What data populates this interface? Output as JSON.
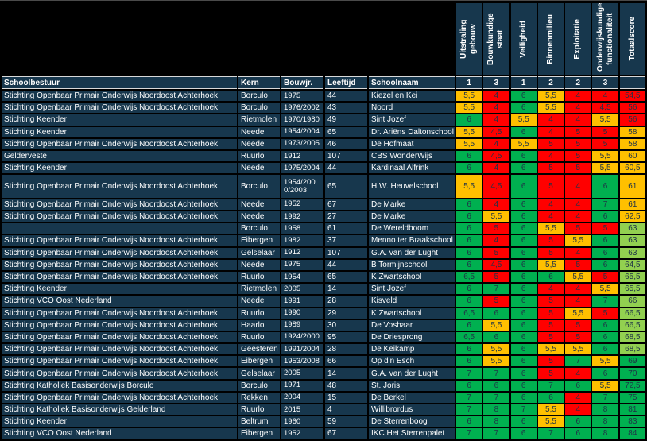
{
  "table": {
    "text_columns": [
      "Schoolbestuur",
      "Kern",
      "Bouwjr.",
      "Leeftijd",
      "Schoolnaam"
    ],
    "score_columns": [
      {
        "label": "Uitstraling gebouw",
        "weight": "1"
      },
      {
        "label": "Bouwkundige staat",
        "weight": "3"
      },
      {
        "label": "Veiligheid",
        "weight": "1"
      },
      {
        "label": "Binnenmilieu",
        "weight": "2"
      },
      {
        "label": "Exploitatie",
        "weight": "2"
      },
      {
        "label": "Onderwijskundige functionaliteit",
        "weight": "3"
      },
      {
        "label": "Totaalscore",
        "weight": ""
      }
    ],
    "rows": [
      {
        "bestuur": "Stichting Openbaar Primair Onderwijs Noordoost Achterhoek",
        "kern": "Borculo",
        "bouwjr": "1975",
        "leeftijd": "44",
        "school": "Kiezel en Kei",
        "scores": [
          [
            "5,5",
            "o"
          ],
          [
            "4",
            "r"
          ],
          [
            "6",
            "g"
          ],
          [
            "5,5",
            "o"
          ],
          [
            "4",
            "r"
          ],
          [
            "4",
            "r"
          ]
        ],
        "total": [
          "54,5",
          "r"
        ],
        "tall": false
      },
      {
        "bestuur": "Stichting Openbaar Primair Onderwijs Noordoost Achterhoek",
        "kern": "Borculo",
        "bouwjr": "1976/2002",
        "leeftijd": "43",
        "school": "Noord",
        "scores": [
          [
            "5,5",
            "o"
          ],
          [
            "4",
            "r"
          ],
          [
            "6",
            "g"
          ],
          [
            "5,5",
            "o"
          ],
          [
            "4",
            "r"
          ],
          [
            "4,5",
            "r"
          ]
        ],
        "total": [
          "56",
          "r"
        ],
        "tall": false
      },
      {
        "bestuur": "Stichting Keender",
        "kern": "Rietmolen",
        "bouwjr": "1970/1980",
        "leeftijd": "49",
        "school": "Sint Jozef",
        "scores": [
          [
            "6",
            "g"
          ],
          [
            "4",
            "r"
          ],
          [
            "5,5",
            "o"
          ],
          [
            "4",
            "r"
          ],
          [
            "4",
            "r"
          ],
          [
            "5,5",
            "o"
          ]
        ],
        "total": [
          "56",
          "r"
        ],
        "tall": false
      },
      {
        "bestuur": "Stichting Keender",
        "kern": "Neede",
        "bouwjr": "1954/2004",
        "leeftijd": "65",
        "school": "Dr. Ariëns Daltonschool",
        "scores": [
          [
            "5,5",
            "o"
          ],
          [
            "4,5",
            "r"
          ],
          [
            "6",
            "g"
          ],
          [
            "4",
            "r"
          ],
          [
            "5",
            "r"
          ],
          [
            "5",
            "r"
          ]
        ],
        "total": [
          "58",
          "o"
        ],
        "tall": false
      },
      {
        "bestuur": "Stichting Openbaar Primair Onderwijs Noordoost Achterhoek",
        "kern": "Neede",
        "bouwjr": "1973/2005",
        "leeftijd": "46",
        "school": "De Hofmaat",
        "scores": [
          [
            "5,5",
            "o"
          ],
          [
            "4",
            "r"
          ],
          [
            "5,5",
            "o"
          ],
          [
            "5",
            "r"
          ],
          [
            "5",
            "r"
          ],
          [
            "5",
            "r"
          ]
        ],
        "total": [
          "58",
          "o"
        ],
        "tall": false
      },
      {
        "bestuur": "Gelderveste",
        "kern": "Ruurlo",
        "bouwjr": "1912",
        "leeftijd": "107",
        "school": "CBS WonderWijs",
        "scores": [
          [
            "6",
            "g"
          ],
          [
            "4,5",
            "r"
          ],
          [
            "6",
            "g"
          ],
          [
            "4",
            "r"
          ],
          [
            "5",
            "r"
          ],
          [
            "5,5",
            "o"
          ]
        ],
        "total": [
          "60",
          "o"
        ],
        "tall": false
      },
      {
        "bestuur": "Stichting Keender",
        "kern": "Neede",
        "bouwjr": "1975/2004",
        "leeftijd": "44",
        "school": "Kardinaal Alfrink",
        "scores": [
          [
            "6",
            "g"
          ],
          [
            "4",
            "r"
          ],
          [
            "6",
            "g"
          ],
          [
            "5",
            "r"
          ],
          [
            "5",
            "r"
          ],
          [
            "5,5",
            "o"
          ]
        ],
        "total": [
          "60,5",
          "o"
        ],
        "tall": false
      },
      {
        "bestuur": "Stichting Openbaar Primair Onderwijs Noordoost Achterhoek",
        "kern": "Borculo",
        "bouwjr": "1954/2000/2003",
        "leeftijd": "65",
        "school": "H.W. Heuvelschool",
        "scores": [
          [
            "5,5",
            "o"
          ],
          [
            "4,5",
            "r"
          ],
          [
            "6",
            "g"
          ],
          [
            "5",
            "r"
          ],
          [
            "4",
            "r"
          ],
          [
            "6",
            "g"
          ]
        ],
        "total": [
          "61",
          "o"
        ],
        "tall": true
      },
      {
        "bestuur": "Stichting Openbaar Primair Onderwijs Noordoost Achterhoek",
        "kern": "Neede",
        "bouwjr": "1952",
        "leeftijd": "67",
        "school": "De Marke",
        "scores": [
          [
            "6",
            "g"
          ],
          [
            "4",
            "r"
          ],
          [
            "6",
            "g"
          ],
          [
            "4",
            "r"
          ],
          [
            "4",
            "r"
          ],
          [
            "7",
            "g"
          ]
        ],
        "total": [
          "61",
          "o"
        ],
        "tall": false
      },
      {
        "bestuur": "Stichting Openbaar Primair Onderwijs Noordoost Achterhoek",
        "kern": "Neede",
        "bouwjr": "1992",
        "leeftijd": "27",
        "school": "De Marke",
        "scores": [
          [
            "6",
            "g"
          ],
          [
            "5,5",
            "o"
          ],
          [
            "6",
            "g"
          ],
          [
            "4",
            "r"
          ],
          [
            "4",
            "r"
          ],
          [
            "6",
            "g"
          ]
        ],
        "total": [
          "62,5",
          "o"
        ],
        "tall": false
      },
      {
        "bestuur": "",
        "kern": "Borculo",
        "bouwjr": "1958",
        "leeftijd": "61",
        "school": "De Wereldboom",
        "scores": [
          [
            "6",
            "g"
          ],
          [
            "5",
            "r"
          ],
          [
            "6",
            "g"
          ],
          [
            "5,5",
            "o"
          ],
          [
            "5",
            "r"
          ],
          [
            "5",
            "r"
          ]
        ],
        "total": [
          "63",
          "lg"
        ],
        "tall": false
      },
      {
        "bestuur": "Stichting Openbaar Primair Onderwijs Noordoost Achterhoek",
        "kern": "Eibergen",
        "bouwjr": "1982",
        "leeftijd": "37",
        "school": "Menno ter Braakschool",
        "scores": [
          [
            "6",
            "g"
          ],
          [
            "4",
            "r"
          ],
          [
            "6",
            "g"
          ],
          [
            "5",
            "r"
          ],
          [
            "5,5",
            "o"
          ],
          [
            "6",
            "g"
          ]
        ],
        "total": [
          "63",
          "lg"
        ],
        "tall": false
      },
      {
        "bestuur": "Stichting Openbaar Primair Onderwijs Noordoost Achterhoek",
        "kern": "Gelselaar",
        "bouwjr": "1912",
        "leeftijd": "107",
        "school": "G.A. van der Lught",
        "scores": [
          [
            "6",
            "g"
          ],
          [
            "5",
            "r"
          ],
          [
            "6",
            "g"
          ],
          [
            "5",
            "r"
          ],
          [
            "4",
            "r"
          ],
          [
            "6",
            "g"
          ]
        ],
        "total": [
          "63",
          "lg"
        ],
        "tall": false
      },
      {
        "bestuur": "Stichting Openbaar Primair Onderwijs Noordoost Achterhoek",
        "kern": "Neede",
        "bouwjr": "1975",
        "leeftijd": "44",
        "school": "B Tormijnschool",
        "scores": [
          [
            "6",
            "g"
          ],
          [
            "4,5",
            "r"
          ],
          [
            "6",
            "g"
          ],
          [
            "5,5",
            "o"
          ],
          [
            "5",
            "r"
          ],
          [
            "6",
            "g"
          ]
        ],
        "total": [
          "64,5",
          "lg"
        ],
        "tall": false
      },
      {
        "bestuur": "Stichting Openbaar Primair Onderwijs Noordoost Achterhoek",
        "kern": "Ruurlo",
        "bouwjr": "1954",
        "leeftijd": "65",
        "school": "K Zwartschool",
        "scores": [
          [
            "6,5",
            "g"
          ],
          [
            "5",
            "r"
          ],
          [
            "6",
            "g"
          ],
          [
            "6",
            "g"
          ],
          [
            "5,5",
            "o"
          ],
          [
            "5",
            "r"
          ]
        ],
        "total": [
          "65,5",
          "lg"
        ],
        "tall": false
      },
      {
        "bestuur": "Stichting Keender",
        "kern": "Rietmolen",
        "bouwjr": "2005",
        "leeftijd": "14",
        "school": "Sint Jozef",
        "scores": [
          [
            "6",
            "g"
          ],
          [
            "7",
            "g"
          ],
          [
            "6",
            "g"
          ],
          [
            "4",
            "r"
          ],
          [
            "4",
            "r"
          ],
          [
            "5,5",
            "o"
          ]
        ],
        "total": [
          "65,5",
          "lg"
        ],
        "tall": false
      },
      {
        "bestuur": "Stichting VCO Oost Nederland",
        "kern": "Neede",
        "bouwjr": "1991",
        "leeftijd": "28",
        "school": "Kisveld",
        "scores": [
          [
            "6",
            "g"
          ],
          [
            "5",
            "r"
          ],
          [
            "6",
            "g"
          ],
          [
            "5",
            "r"
          ],
          [
            "4",
            "r"
          ],
          [
            "7",
            "g"
          ]
        ],
        "total": [
          "66",
          "lg"
        ],
        "tall": false
      },
      {
        "bestuur": "Stichting Openbaar Primair Onderwijs Noordoost Achterhoek",
        "kern": "Ruurlo",
        "bouwjr": "1990",
        "leeftijd": "29",
        "school": "K Zwartschool",
        "scores": [
          [
            "6,5",
            "g"
          ],
          [
            "6",
            "g"
          ],
          [
            "6",
            "g"
          ],
          [
            "5",
            "r"
          ],
          [
            "5,5",
            "o"
          ],
          [
            "5",
            "r"
          ]
        ],
        "total": [
          "66,5",
          "lg"
        ],
        "tall": false
      },
      {
        "bestuur": "Stichting Openbaar Primair Onderwijs Noordoost Achterhoek",
        "kern": "Haarlo",
        "bouwjr": "1989",
        "leeftijd": "30",
        "school": "De Voshaar",
        "scores": [
          [
            "6",
            "g"
          ],
          [
            "5,5",
            "o"
          ],
          [
            "6",
            "g"
          ],
          [
            "5",
            "r"
          ],
          [
            "5",
            "r"
          ],
          [
            "6",
            "g"
          ]
        ],
        "total": [
          "66,5",
          "lg"
        ],
        "tall": false
      },
      {
        "bestuur": "Stichting Openbaar Primair Onderwijs Noordoost Achterhoek",
        "kern": "Ruurlo",
        "bouwjr": "1924/2000",
        "leeftijd": "95",
        "school": "De Driesprong",
        "scores": [
          [
            "6,5",
            "g"
          ],
          [
            "6",
            "g"
          ],
          [
            "6",
            "g"
          ],
          [
            "5",
            "r"
          ],
          [
            "5",
            "r"
          ],
          [
            "6",
            "g"
          ]
        ],
        "total": [
          "68,5",
          "lg"
        ],
        "tall": false
      },
      {
        "bestuur": "Stichting Openbaar Primair Onderwijs Noordoost Achterhoek",
        "kern": "Geesteren",
        "bouwjr": "1991/2004",
        "leeftijd": "28",
        "school": "De Keikamp",
        "scores": [
          [
            "6",
            "g"
          ],
          [
            "5,5",
            "o"
          ],
          [
            "6",
            "g"
          ],
          [
            "5,5",
            "o"
          ],
          [
            "5,5",
            "o"
          ],
          [
            "6",
            "g"
          ]
        ],
        "total": [
          "68,5",
          "lg"
        ],
        "tall": false
      },
      {
        "bestuur": "Stichting Openbaar Primair Onderwijs Noordoost Achterhoek",
        "kern": "Eibergen",
        "bouwjr": "1953/2008",
        "leeftijd": "66",
        "school": "Op d'n Esch",
        "scores": [
          [
            "6",
            "g"
          ],
          [
            "5,5",
            "o"
          ],
          [
            "6",
            "g"
          ],
          [
            "5",
            "r"
          ],
          [
            "7",
            "g"
          ],
          [
            "5,5",
            "o"
          ]
        ],
        "total": [
          "69",
          "g"
        ],
        "tall": false
      },
      {
        "bestuur": "Stichting Openbaar Primair Onderwijs Noordoost Achterhoek",
        "kern": "Gelselaar",
        "bouwjr": "2005",
        "leeftijd": "14",
        "school": "G.A. van der Lught",
        "scores": [
          [
            "7",
            "g"
          ],
          [
            "7",
            "g"
          ],
          [
            "6",
            "g"
          ],
          [
            "5",
            "r"
          ],
          [
            "4",
            "r"
          ],
          [
            "6",
            "g"
          ]
        ],
        "total": [
          "70",
          "g"
        ],
        "tall": false
      },
      {
        "bestuur": "Stichting Katholiek Basisonderwijs Borculo",
        "kern": "Borculo",
        "bouwjr": "1971",
        "leeftijd": "48",
        "school": "St. Joris",
        "scores": [
          [
            "6",
            "g"
          ],
          [
            "6",
            "g"
          ],
          [
            "6",
            "g"
          ],
          [
            "7",
            "g"
          ],
          [
            "6",
            "g"
          ],
          [
            "5,5",
            "o"
          ]
        ],
        "total": [
          "72,5",
          "g"
        ],
        "tall": false
      },
      {
        "bestuur": "Stichting Openbaar Primair Onderwijs Noordoost Achterhoek",
        "kern": "Rekken",
        "bouwjr": "2004",
        "leeftijd": "15",
        "school": "De Berkel",
        "scores": [
          [
            "7",
            "g"
          ],
          [
            "7",
            "g"
          ],
          [
            "6",
            "g"
          ],
          [
            "6",
            "g"
          ],
          [
            "4",
            "r"
          ],
          [
            "7",
            "g"
          ]
        ],
        "total": [
          "75",
          "g"
        ],
        "tall": false
      },
      {
        "bestuur": "Stichting Katholiek Basisonderwijs Gelderland",
        "kern": "Ruurlo",
        "bouwjr": "2015",
        "leeftijd": "4",
        "school": "Willibrordus",
        "scores": [
          [
            "7",
            "g"
          ],
          [
            "8",
            "g"
          ],
          [
            "7",
            "g"
          ],
          [
            "5,5",
            "o"
          ],
          [
            "4",
            "r"
          ],
          [
            "8",
            "g"
          ]
        ],
        "total": [
          "81",
          "g"
        ],
        "tall": false
      },
      {
        "bestuur": "Stichting Keender",
        "kern": "Beltrum",
        "bouwjr": "1960",
        "leeftijd": "59",
        "school": "De Sterrenboog",
        "scores": [
          [
            "6",
            "g"
          ],
          [
            "8",
            "g"
          ],
          [
            "6",
            "g"
          ],
          [
            "5,5",
            "o"
          ],
          [
            "6",
            "g"
          ],
          [
            "8",
            "g"
          ]
        ],
        "total": [
          "83",
          "g"
        ],
        "tall": false
      },
      {
        "bestuur": "Stichting VCO Oost Nederland",
        "kern": "Eibergen",
        "bouwjr": "1952",
        "leeftijd": "67",
        "school": "IKC Het Sterrenpalet",
        "scores": [
          [
            "7",
            "g"
          ],
          [
            "7",
            "g"
          ],
          [
            "6",
            "g"
          ],
          [
            "7",
            "g"
          ],
          [
            "6",
            "g"
          ],
          [
            "8",
            "g"
          ]
        ],
        "total": [
          "84",
          "g"
        ],
        "tall": false
      }
    ]
  },
  "colors": {
    "g": "#00B050",
    "lg": "#92D050",
    "o": "#FFC000",
    "r": "#FF0000",
    "navy": "#17374D",
    "grid_line": "#000000",
    "header_rule": "#D9D9D9",
    "score_text": "#1F3347"
  }
}
